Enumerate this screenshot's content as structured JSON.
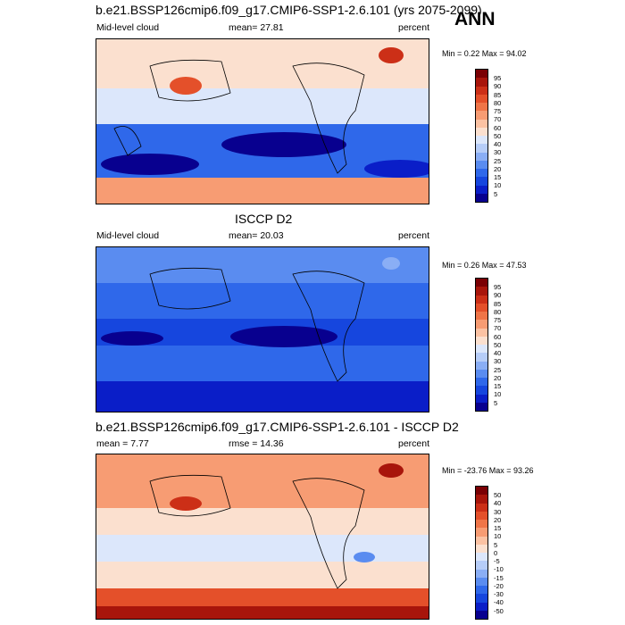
{
  "panels": [
    {
      "title": "b.e21.BSSP126cmip6.f09_g17.CMIP6-SSP1-2.6.101 (yrs 2075-2099)",
      "left_label": "Mid-level cloud",
      "center_label": "mean=  27.81",
      "units": "percent",
      "minmax": "Min =   0.22 Max =  94.02",
      "colorbar_labels": [
        "95",
        "90",
        "85",
        "80",
        "75",
        "70",
        "60",
        "50",
        "40",
        "30",
        "25",
        "20",
        "15",
        "10",
        "5"
      ]
    },
    {
      "title": "ISCCP D2",
      "left_label": "Mid-level cloud",
      "center_label": "mean=  20.03",
      "units": "percent",
      "minmax": "Min =   0.26 Max =  47.53",
      "colorbar_labels": [
        "95",
        "90",
        "85",
        "80",
        "75",
        "70",
        "60",
        "50",
        "40",
        "30",
        "25",
        "20",
        "15",
        "10",
        "5"
      ]
    },
    {
      "title": "b.e21.BSSP126cmip6.f09_g17.CMIP6-SSP1-2.6.101 - ISCCP D2",
      "left_label": "mean =   7.77",
      "center_label": "rmse =  14.36",
      "units": "percent",
      "minmax": "Min = -23.76 Max =  93.26",
      "colorbar_labels": [
        "50",
        "40",
        "30",
        "20",
        "15",
        "10",
        "5",
        "0",
        "-5",
        "-10",
        "-15",
        "-20",
        "-30",
        "-40",
        "-50"
      ]
    }
  ],
  "season": "ANN",
  "colors": {
    "scale": [
      "#08008f",
      "#0a1ec8",
      "#1646de",
      "#2f68ea",
      "#5a8cf0",
      "#8aaef5",
      "#b6cdf8",
      "#dce7fb",
      "#fbe0cf",
      "#fbc2a3",
      "#f79c73",
      "#ef7548",
      "#e4502a",
      "#cc2f17",
      "#a8150b",
      "#7a0004"
    ]
  }
}
